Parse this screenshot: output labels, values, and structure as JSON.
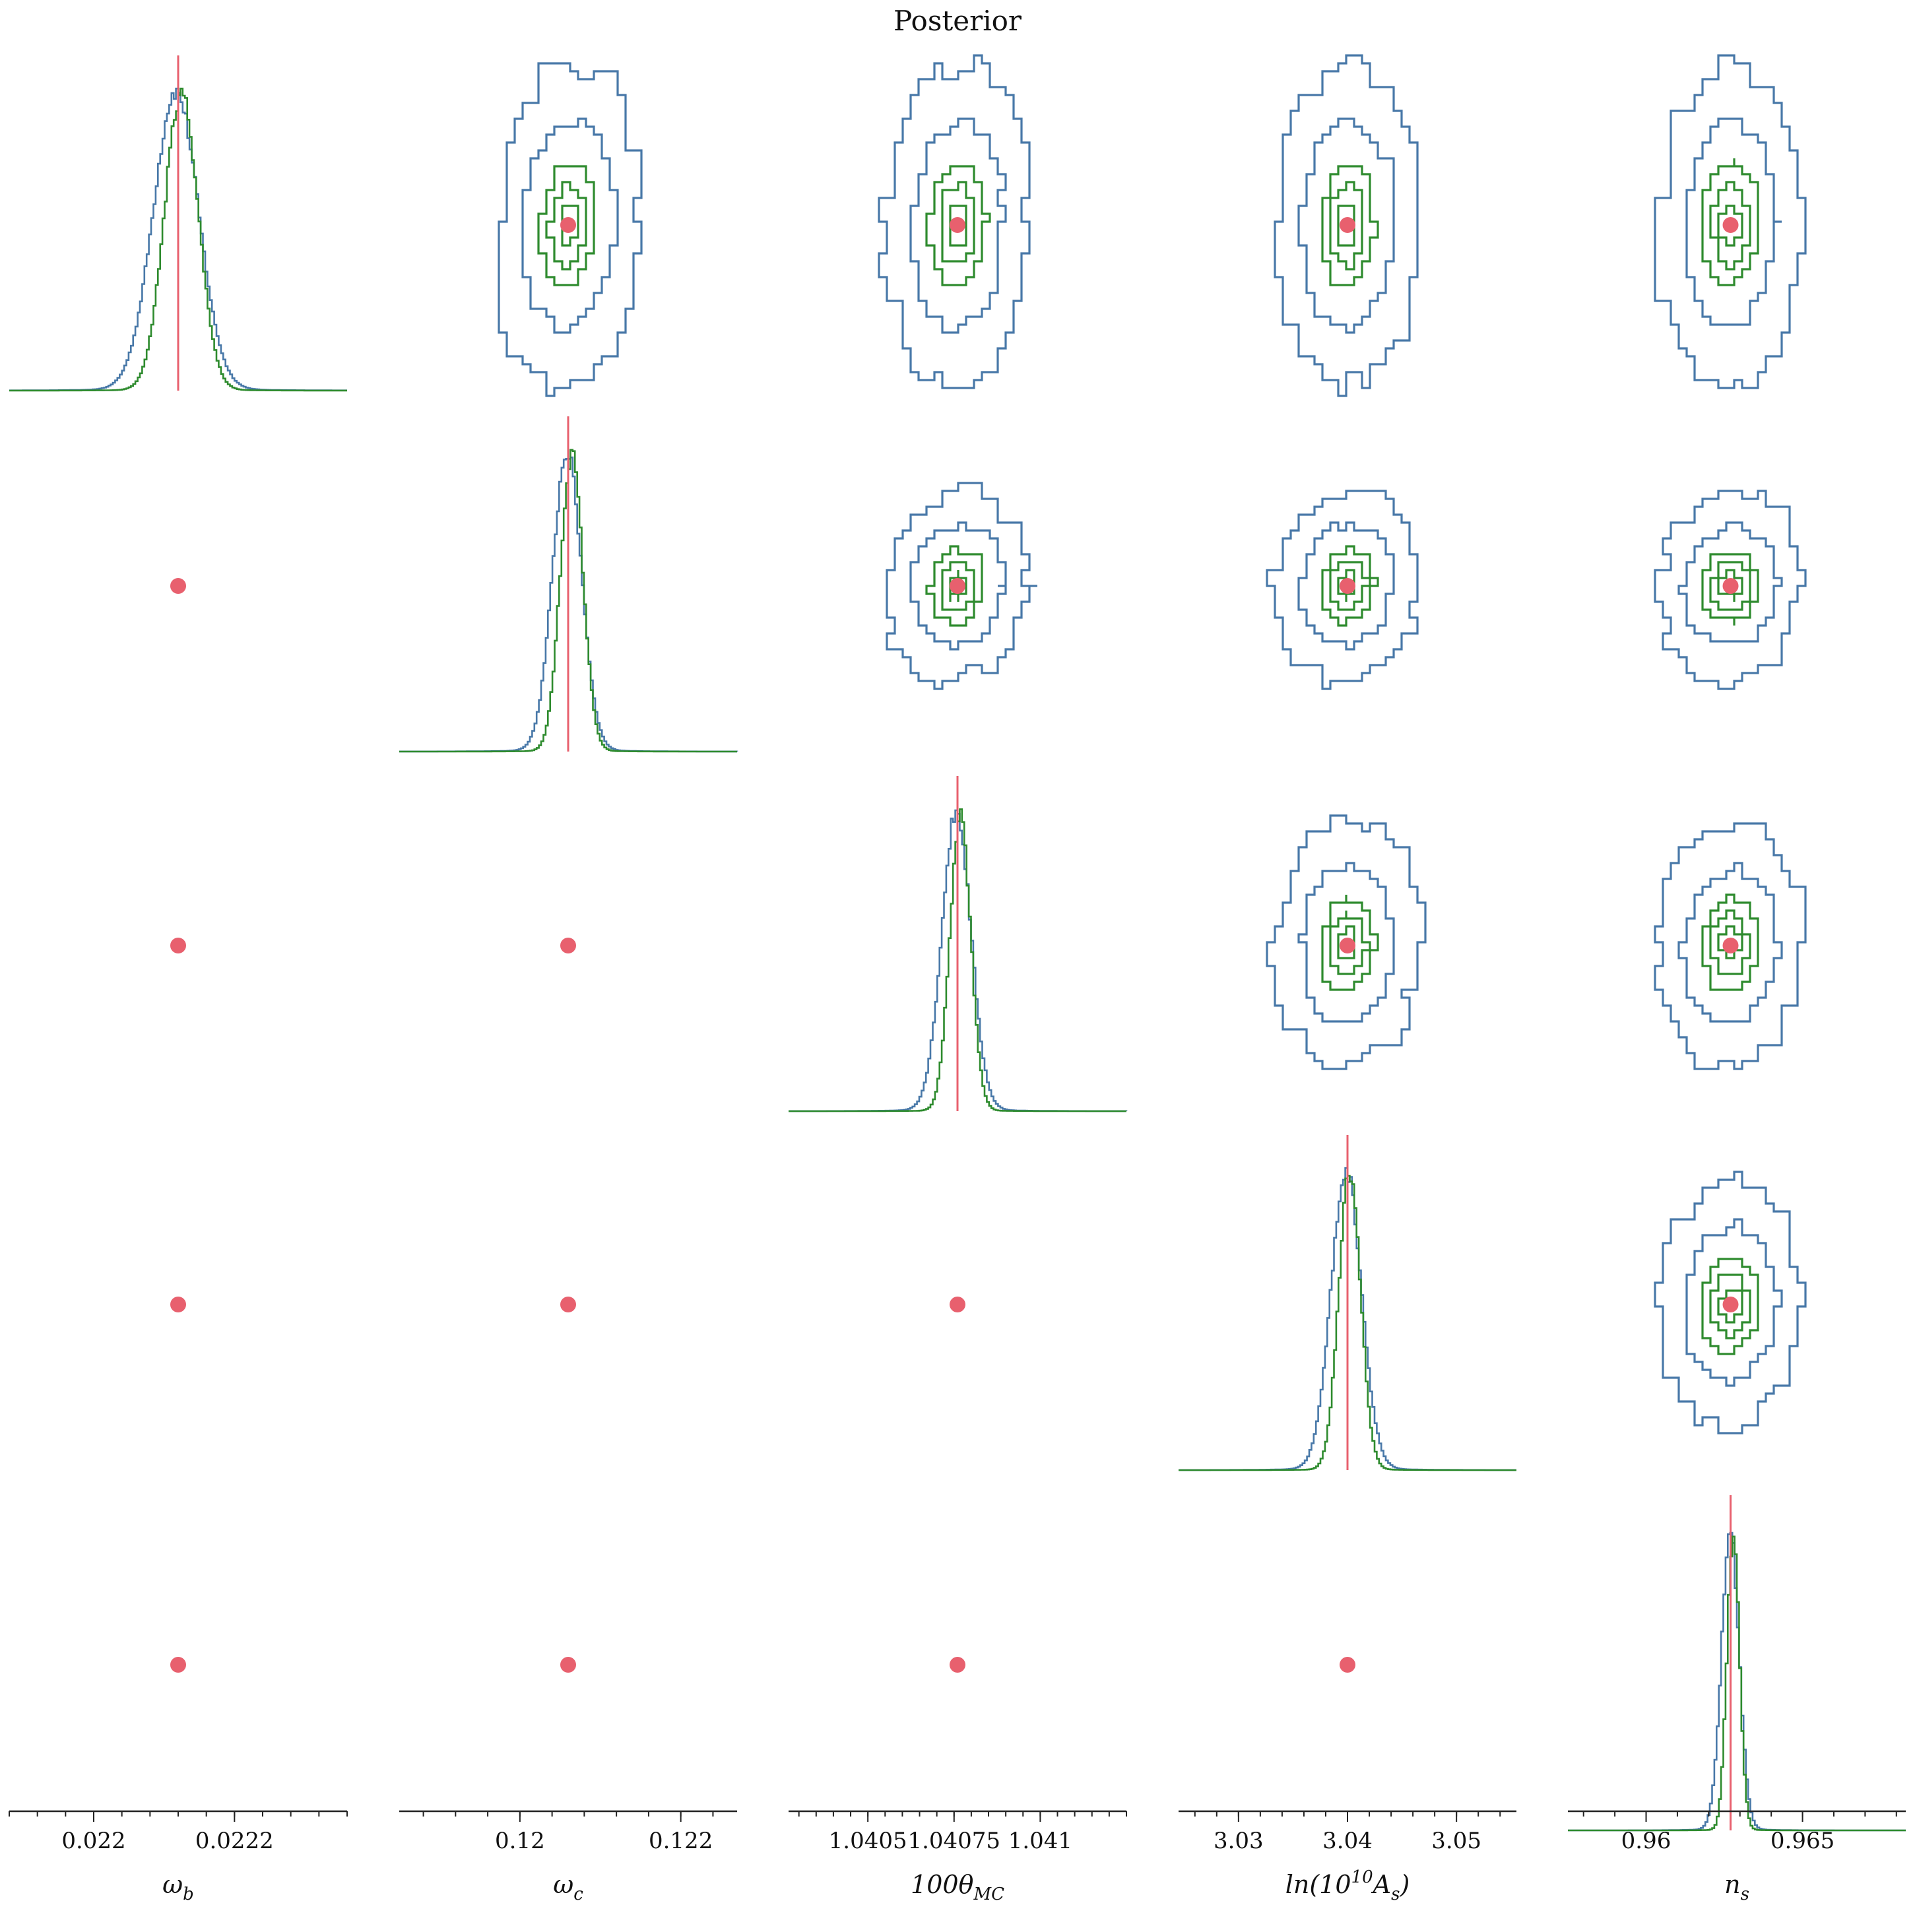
{
  "chart_data": {
    "type": "corner",
    "title": "Posterior",
    "colors": {
      "blue": "#4878a8",
      "green": "#2e8b2e",
      "truth": "#e8606e"
    },
    "parameters": [
      {
        "key": "omega_b",
        "label": "ωb",
        "label_main": "ω",
        "label_sub": "b",
        "truth": 0.02212,
        "range": [
          0.02188,
          0.02236
        ],
        "ticks": [
          0.022,
          0.0222
        ],
        "tick_labels": [
          "0.022",
          "0.0222"
        ],
        "sigma_blue": 3.2e-05,
        "sigma_green": 2.4e-05,
        "offset_green": 3e-06
      },
      {
        "key": "omega_c",
        "label": "ωc",
        "label_main": "ω",
        "label_sub": "c",
        "truth": 0.1206,
        "range": [
          0.1185,
          0.1227
        ],
        "ticks": [
          0.12,
          0.122
        ],
        "tick_labels": [
          "0.12",
          "0.122"
        ],
        "sigma_blue": 0.00018,
        "sigma_green": 0.00014,
        "offset_green": 3e-05
      },
      {
        "key": "theta_mc",
        "label": "100θMC",
        "label_main": "100θ",
        "label_sub": "MC",
        "truth": 1.04076,
        "range": [
          1.04027,
          1.04125
        ],
        "ticks": [
          1.0405,
          1.04075,
          1.041
        ],
        "tick_labels": [
          "1.0405",
          "1.04075",
          "1.041"
        ],
        "sigma_blue": 4.2e-05,
        "sigma_green": 3e-05,
        "offset_green": 5e-06
      },
      {
        "key": "ln_as",
        "label": "ln(1010As)",
        "label_main": "ln(10",
        "label_sup": "10",
        "label_tail": "A",
        "label_sub": "s",
        "label_close": ")",
        "truth": 3.04,
        "range": [
          3.0245,
          3.0555
        ],
        "ticks": [
          3.03,
          3.04,
          3.05
        ],
        "tick_labels": [
          "3.03",
          "3.04",
          "3.05"
        ],
        "sigma_blue": 0.0014,
        "sigma_green": 0.001,
        "offset_green": 0.0001
      },
      {
        "key": "n_s",
        "label": "ns",
        "label_main": "n",
        "label_sub": "s",
        "truth": 0.9627,
        "range": [
          0.9575,
          0.9683
        ],
        "ticks": [
          0.96,
          0.965
        ],
        "tick_labels": [
          "0.96",
          "0.965"
        ],
        "sigma_blue": 0.00028,
        "sigma_green": 0.0002,
        "offset_green": 5e-05
      }
    ],
    "series": [
      {
        "name": "",
        "color": "blue"
      },
      {
        "name": "",
        "color": "green"
      }
    ],
    "grid": false,
    "legend": "none"
  }
}
